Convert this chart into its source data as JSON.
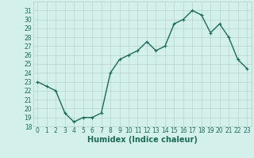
{
  "x": [
    0,
    1,
    2,
    3,
    4,
    5,
    6,
    7,
    8,
    9,
    10,
    11,
    12,
    13,
    14,
    15,
    16,
    17,
    18,
    19,
    20,
    21,
    22,
    23
  ],
  "y": [
    23.0,
    22.5,
    22.0,
    19.5,
    18.5,
    19.0,
    19.0,
    19.5,
    24.0,
    25.5,
    26.0,
    26.5,
    27.5,
    26.5,
    27.0,
    29.5,
    30.0,
    31.0,
    30.5,
    28.5,
    29.5,
    28.0,
    25.5,
    24.5
  ],
  "xlabel": "Humidex (Indice chaleur)",
  "ylim": [
    18,
    32
  ],
  "xlim": [
    -0.5,
    23.5
  ],
  "yticks": [
    18,
    19,
    20,
    21,
    22,
    23,
    24,
    25,
    26,
    27,
    28,
    29,
    30,
    31
  ],
  "xticks": [
    0,
    1,
    2,
    3,
    4,
    5,
    6,
    7,
    8,
    9,
    10,
    11,
    12,
    13,
    14,
    15,
    16,
    17,
    18,
    19,
    20,
    21,
    22,
    23
  ],
  "line_color": "#1a6b5a",
  "marker": "+",
  "marker_size": 3,
  "bg_color": "#d4f0eb",
  "grid_color": "#b0cdc8",
  "xlabel_fontsize": 7,
  "tick_fontsize": 5.5,
  "linewidth": 1.0
}
